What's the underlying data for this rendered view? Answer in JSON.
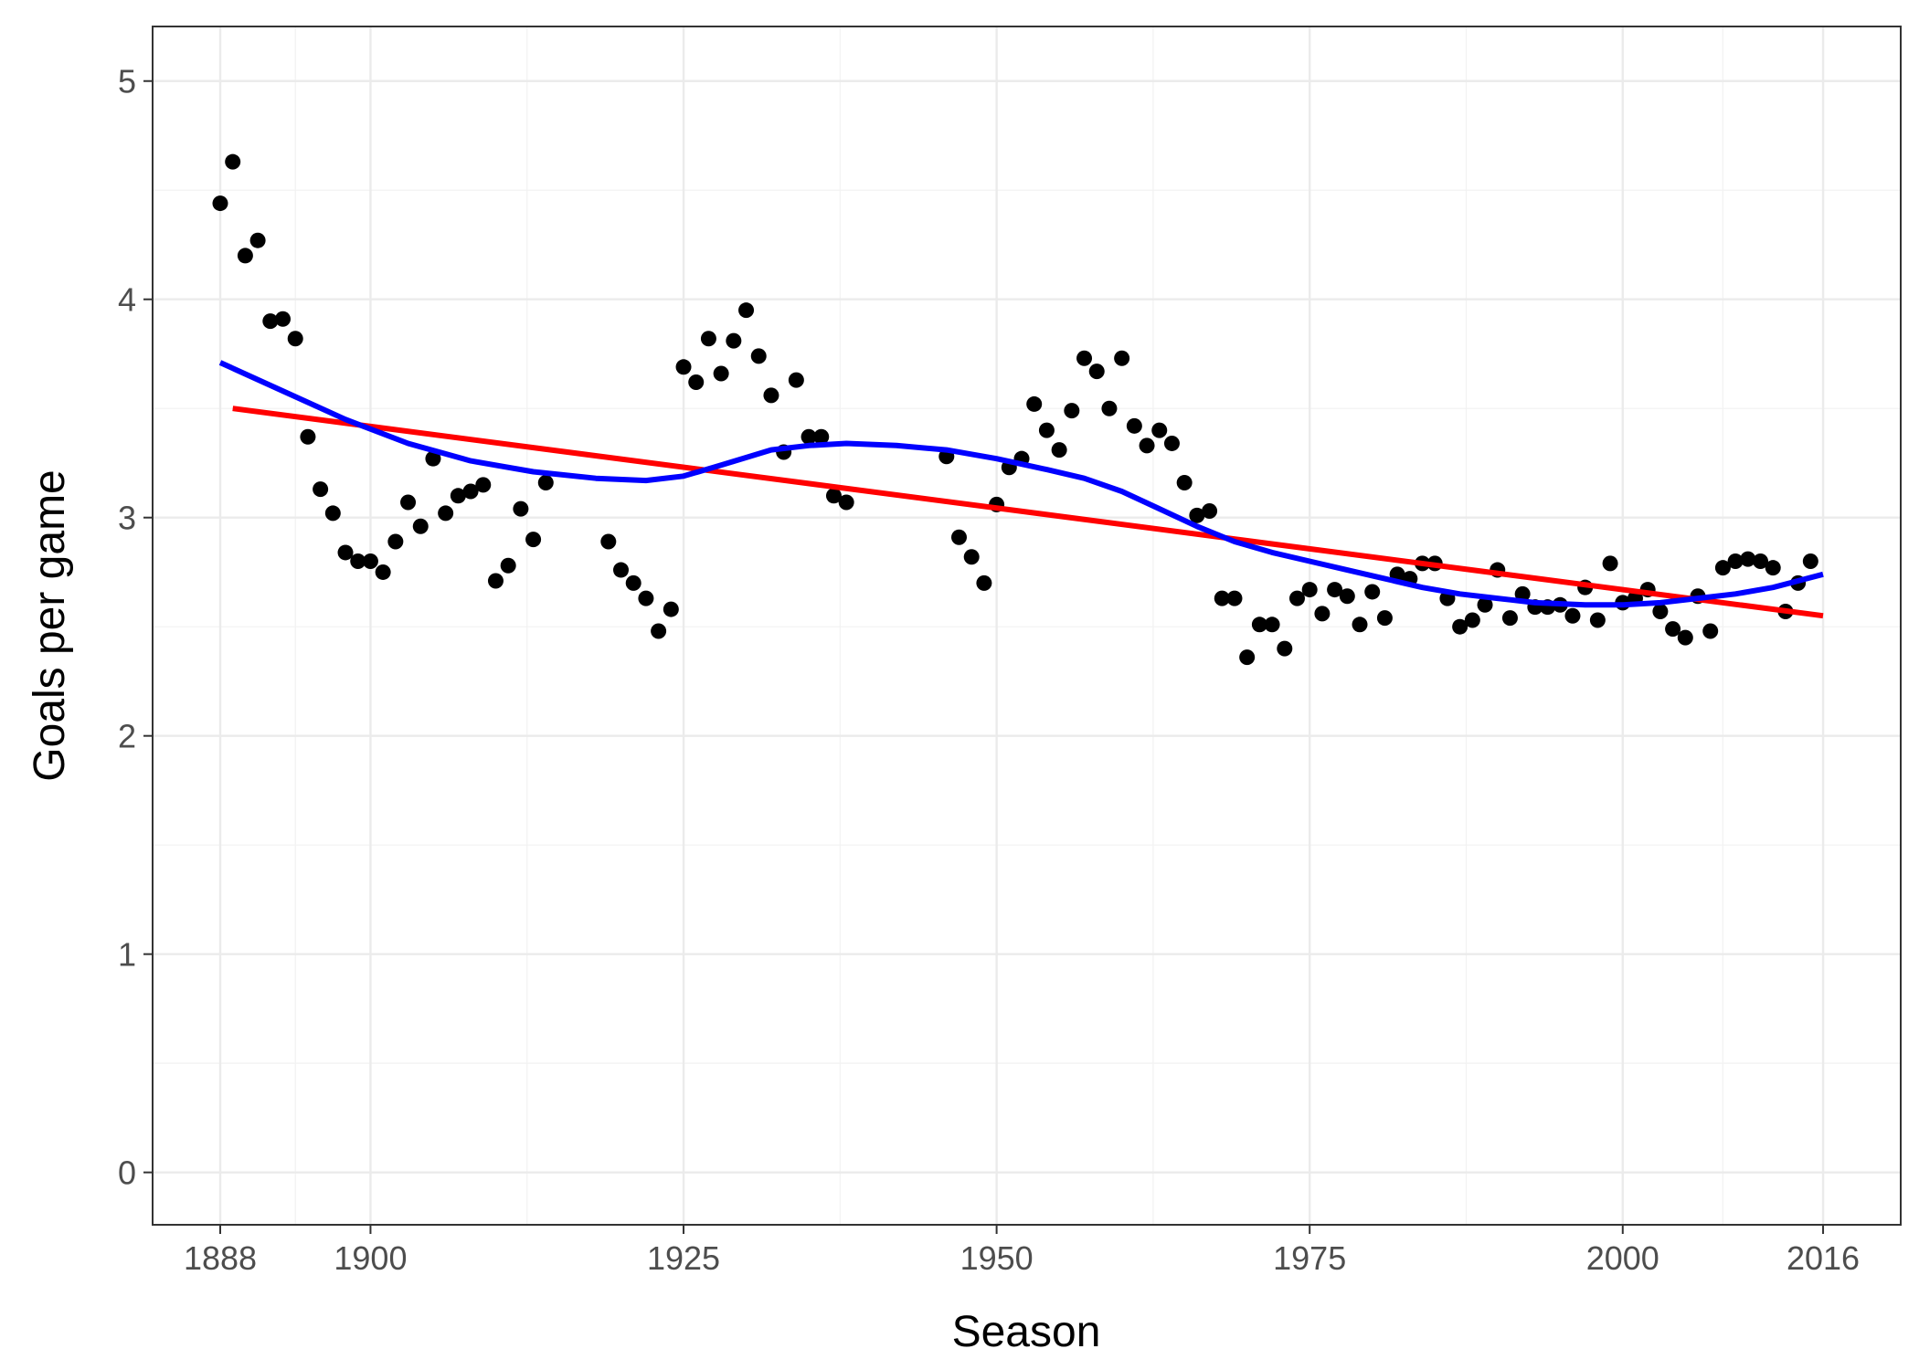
{
  "chart_data": {
    "type": "scatter",
    "title": "",
    "xlabel": "Season",
    "ylabel": "Goals per game",
    "xlim": [
      1882.6,
      2022.2
    ],
    "ylim": [
      -0.24,
      5.25
    ],
    "x_ticks": [
      1888,
      1900,
      1925,
      1950,
      1975,
      2000,
      2016
    ],
    "y_ticks": [
      0,
      1,
      2,
      3,
      4,
      5
    ],
    "grid": true,
    "legend": "none",
    "series": [
      {
        "kind": "points",
        "color": "#000000",
        "points": [
          [
            1888,
            4.44
          ],
          [
            1889,
            4.63
          ],
          [
            1890,
            4.2
          ],
          [
            1891,
            4.27
          ],
          [
            1892,
            3.9
          ],
          [
            1893,
            3.91
          ],
          [
            1894,
            3.82
          ],
          [
            1895,
            3.37
          ],
          [
            1896,
            3.13
          ],
          [
            1897,
            3.02
          ],
          [
            1898,
            2.84
          ],
          [
            1899,
            2.8
          ],
          [
            1900,
            2.8
          ],
          [
            1901,
            2.75
          ],
          [
            1902,
            2.89
          ],
          [
            1903,
            3.07
          ],
          [
            1904,
            2.96
          ],
          [
            1905,
            3.27
          ],
          [
            1906,
            3.02
          ],
          [
            1907,
            3.1
          ],
          [
            1908,
            3.12
          ],
          [
            1909,
            3.15
          ],
          [
            1910,
            2.71
          ],
          [
            1911,
            2.78
          ],
          [
            1912,
            3.04
          ],
          [
            1913,
            2.9
          ],
          [
            1914,
            3.16
          ],
          [
            1919,
            2.89
          ],
          [
            1920,
            2.76
          ],
          [
            1921,
            2.7
          ],
          [
            1922,
            2.63
          ],
          [
            1923,
            2.48
          ],
          [
            1924,
            2.58
          ],
          [
            1925,
            3.69
          ],
          [
            1926,
            3.62
          ],
          [
            1927,
            3.82
          ],
          [
            1928,
            3.66
          ],
          [
            1929,
            3.81
          ],
          [
            1930,
            3.95
          ],
          [
            1931,
            3.74
          ],
          [
            1932,
            3.56
          ],
          [
            1933,
            3.3
          ],
          [
            1934,
            3.63
          ],
          [
            1935,
            3.37
          ],
          [
            1936,
            3.37
          ],
          [
            1937,
            3.1
          ],
          [
            1938,
            3.07
          ],
          [
            1946,
            3.28
          ],
          [
            1947,
            2.91
          ],
          [
            1948,
            2.82
          ],
          [
            1949,
            2.7
          ],
          [
            1950,
            3.06
          ],
          [
            1951,
            3.23
          ],
          [
            1952,
            3.27
          ],
          [
            1953,
            3.52
          ],
          [
            1954,
            3.4
          ],
          [
            1955,
            3.31
          ],
          [
            1956,
            3.49
          ],
          [
            1957,
            3.73
          ],
          [
            1958,
            3.67
          ],
          [
            1959,
            3.5
          ],
          [
            1960,
            3.73
          ],
          [
            1961,
            3.42
          ],
          [
            1962,
            3.33
          ],
          [
            1963,
            3.4
          ],
          [
            1964,
            3.34
          ],
          [
            1965,
            3.16
          ],
          [
            1966,
            3.01
          ],
          [
            1967,
            3.03
          ],
          [
            1968,
            2.63
          ],
          [
            1969,
            2.63
          ],
          [
            1970,
            2.36
          ],
          [
            1971,
            2.51
          ],
          [
            1972,
            2.51
          ],
          [
            1973,
            2.4
          ],
          [
            1974,
            2.63
          ],
          [
            1975,
            2.67
          ],
          [
            1976,
            2.56
          ],
          [
            1977,
            2.67
          ],
          [
            1978,
            2.64
          ],
          [
            1979,
            2.51
          ],
          [
            1980,
            2.66
          ],
          [
            1981,
            2.54
          ],
          [
            1982,
            2.74
          ],
          [
            1983,
            2.72
          ],
          [
            1984,
            2.79
          ],
          [
            1985,
            2.79
          ],
          [
            1986,
            2.63
          ],
          [
            1987,
            2.5
          ],
          [
            1988,
            2.53
          ],
          [
            1989,
            2.6
          ],
          [
            1990,
            2.76
          ],
          [
            1991,
            2.54
          ],
          [
            1992,
            2.65
          ],
          [
            1993,
            2.59
          ],
          [
            1994,
            2.59
          ],
          [
            1995,
            2.6
          ],
          [
            1996,
            2.55
          ],
          [
            1997,
            2.68
          ],
          [
            1998,
            2.53
          ],
          [
            1999,
            2.79
          ],
          [
            2000,
            2.61
          ],
          [
            2001,
            2.63
          ],
          [
            2002,
            2.67
          ],
          [
            2003,
            2.57
          ],
          [
            2004,
            2.49
          ],
          [
            2005,
            2.45
          ],
          [
            2006,
            2.64
          ],
          [
            2007,
            2.48
          ],
          [
            2008,
            2.77
          ],
          [
            2009,
            2.8
          ],
          [
            2010,
            2.81
          ],
          [
            2011,
            2.8
          ],
          [
            2012,
            2.77
          ],
          [
            2013,
            2.57
          ],
          [
            2014,
            2.7
          ],
          [
            2015,
            2.8
          ]
        ]
      },
      {
        "kind": "line",
        "color": "#ff0000",
        "points": [
          [
            1889,
            3.5
          ],
          [
            2016,
            2.55
          ]
        ]
      },
      {
        "kind": "line",
        "color": "#0000ff",
        "points": [
          [
            1888,
            3.71
          ],
          [
            1893,
            3.58
          ],
          [
            1898,
            3.45
          ],
          [
            1903,
            3.34
          ],
          [
            1908,
            3.26
          ],
          [
            1913,
            3.21
          ],
          [
            1918,
            3.18
          ],
          [
            1922,
            3.17
          ],
          [
            1925,
            3.19
          ],
          [
            1928,
            3.24
          ],
          [
            1932,
            3.31
          ],
          [
            1935,
            3.33
          ],
          [
            1938,
            3.34
          ],
          [
            1942,
            3.33
          ],
          [
            1946,
            3.31
          ],
          [
            1950,
            3.27
          ],
          [
            1954,
            3.22
          ],
          [
            1957,
            3.18
          ],
          [
            1960,
            3.12
          ],
          [
            1963,
            3.04
          ],
          [
            1966,
            2.96
          ],
          [
            1969,
            2.89
          ],
          [
            1972,
            2.84
          ],
          [
            1975,
            2.8
          ],
          [
            1978,
            2.76
          ],
          [
            1981,
            2.72
          ],
          [
            1984,
            2.68
          ],
          [
            1987,
            2.65
          ],
          [
            1990,
            2.63
          ],
          [
            1993,
            2.61
          ],
          [
            1997,
            2.6
          ],
          [
            2000,
            2.6
          ],
          [
            2003,
            2.61
          ],
          [
            2006,
            2.63
          ],
          [
            2009,
            2.65
          ],
          [
            2012,
            2.68
          ],
          [
            2016,
            2.74
          ]
        ]
      }
    ]
  }
}
